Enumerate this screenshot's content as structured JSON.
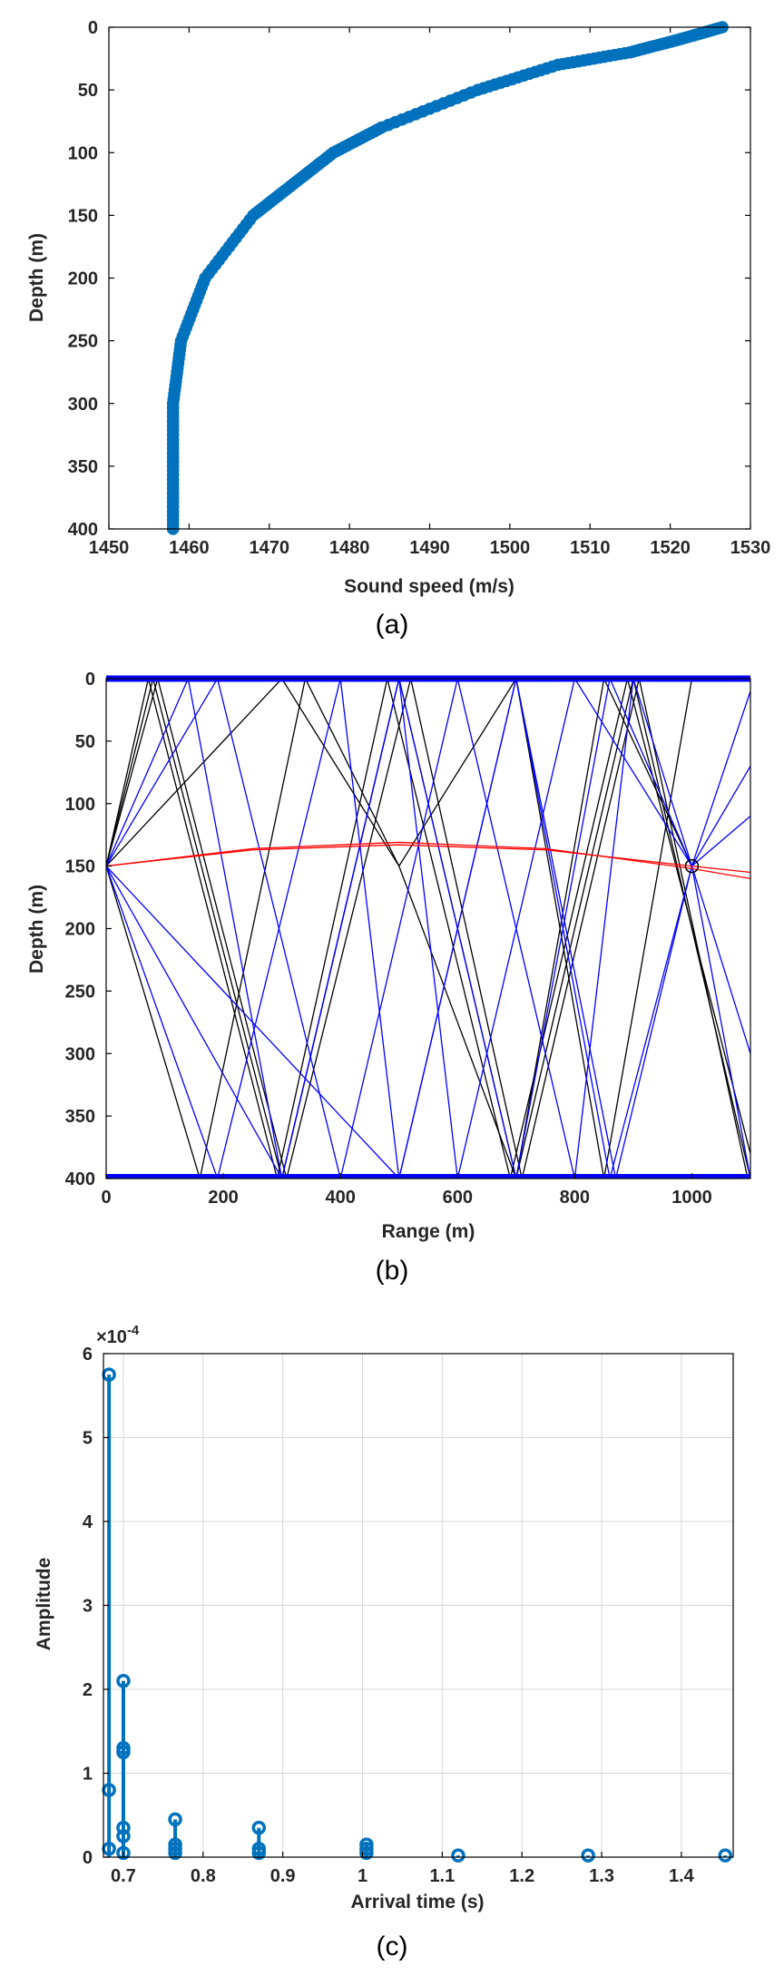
{
  "chart_data": [
    {
      "type": "line",
      "caption": "(a)",
      "xlabel": "Sound speed (m/s)",
      "ylabel": "Depth (m)",
      "xlim": [
        1450,
        1530
      ],
      "ylim": [
        0,
        400
      ],
      "y_reversed": true,
      "xticks": [
        "1450",
        "1460",
        "1470",
        "1480",
        "1490",
        "1500",
        "1510",
        "1520",
        "1530"
      ],
      "yticks": [
        "0",
        "50",
        "100",
        "150",
        "200",
        "250",
        "300",
        "350",
        "400"
      ],
      "marker": "circle",
      "color": "#0072bd",
      "series": [
        {
          "points": [
            [
              1526.5,
              0
            ],
            [
              1521,
              10
            ],
            [
              1515,
              20
            ],
            [
              1506,
              30
            ],
            [
              1496,
              50
            ],
            [
              1484,
              80
            ],
            [
              1478,
              100
            ],
            [
              1473,
              125
            ],
            [
              1468,
              150
            ],
            [
              1462,
              200
            ],
            [
              1459,
              250
            ],
            [
              1458,
              300
            ],
            [
              1458,
              350
            ],
            [
              1458,
              400
            ]
          ]
        }
      ]
    },
    {
      "type": "line",
      "caption": "(b)",
      "xlabel": "Range (m)",
      "ylabel": "Depth (m)",
      "xlim": [
        0,
        1100
      ],
      "ylim": [
        0,
        400
      ],
      "y_reversed": true,
      "xticks": [
        "0",
        "200",
        "400",
        "600",
        "800",
        "1000"
      ],
      "yticks": [
        "0",
        "50",
        "100",
        "150",
        "200",
        "250",
        "300",
        "350",
        "400"
      ],
      "source_depth": 150,
      "receiver": [
        1000,
        150
      ],
      "colors": {
        "black": "#000000",
        "blue": "#0000ff",
        "red": "#ff0000"
      },
      "series": [
        {
          "color": "black",
          "points": [
            [
              0,
              150
            ],
            [
              80,
              0
            ],
            [
              300,
              400
            ],
            [
              500,
              0
            ],
            [
              700,
              400
            ],
            [
              900,
              0
            ],
            [
              1100,
              400
            ]
          ]
        },
        {
          "color": "black",
          "points": [
            [
              0,
              150
            ],
            [
              72,
              0
            ],
            [
              292,
              400
            ],
            [
              480,
              0
            ],
            [
              690,
              400
            ],
            [
              890,
              0
            ],
            [
              1100,
              380
            ]
          ]
        },
        {
          "color": "black",
          "points": [
            [
              0,
              150
            ],
            [
              88,
              0
            ],
            [
              308,
              400
            ],
            [
              520,
              0
            ],
            [
              710,
              400
            ],
            [
              910,
              0
            ],
            [
              1100,
              410
            ]
          ]
        },
        {
          "color": "black",
          "points": [
            [
              0,
              150
            ],
            [
              300,
              0
            ],
            [
              500,
              150
            ],
            [
              700,
              0
            ],
            [
              850,
              400
            ],
            [
              1000,
              0
            ]
          ]
        },
        {
          "color": "black",
          "points": [
            [
              0,
              150
            ],
            [
              160,
              400
            ],
            [
              340,
              0
            ],
            [
              500,
              150
            ],
            [
              700,
              400
            ],
            [
              850,
              0
            ],
            [
              1000,
              150
            ]
          ]
        },
        {
          "color": "blue",
          "points": [
            [
              0,
              150
            ],
            [
              140,
              0
            ],
            [
              300,
              400
            ],
            [
              500,
              0
            ],
            [
              700,
              400
            ],
            [
              860,
              0
            ],
            [
              1000,
              150
            ],
            [
              1100,
              400
            ]
          ]
        },
        {
          "color": "blue",
          "points": [
            [
              0,
              150
            ],
            [
              190,
              0
            ],
            [
              400,
              400
            ],
            [
              600,
              0
            ],
            [
              800,
              400
            ],
            [
              900,
              0
            ],
            [
              1000,
              150
            ],
            [
              1100,
              300
            ]
          ]
        },
        {
          "color": "blue",
          "points": [
            [
              0,
              150
            ],
            [
              190,
              400
            ],
            [
              400,
              0
            ],
            [
              500,
              400
            ],
            [
              700,
              0
            ],
            [
              870,
              400
            ],
            [
              1000,
              150
            ],
            [
              1100,
              70
            ]
          ]
        },
        {
          "color": "blue",
          "points": [
            [
              0,
              150
            ],
            [
              300,
              400
            ],
            [
              500,
              0
            ],
            [
              600,
              400
            ],
            [
              800,
              0
            ],
            [
              1000,
              150
            ],
            [
              1100,
              110
            ]
          ]
        },
        {
          "color": "blue",
          "points": [
            [
              0,
              150
            ],
            [
              500,
              400
            ],
            [
              700,
              0
            ],
            [
              860,
              400
            ],
            [
              1000,
              150
            ],
            [
              1100,
              10
            ]
          ]
        },
        {
          "color": "red",
          "points": [
            [
              0,
              150
            ],
            [
              250,
              137
            ],
            [
              500,
              133
            ],
            [
              750,
              137
            ],
            [
              1000,
              150
            ],
            [
              1100,
              155
            ]
          ]
        },
        {
          "color": "red",
          "points": [
            [
              0,
              150
            ],
            [
              250,
              136
            ],
            [
              500,
              131
            ],
            [
              750,
              136
            ],
            [
              1000,
              152
            ],
            [
              1100,
              160
            ]
          ]
        }
      ]
    },
    {
      "type": "stem",
      "caption": "(c)",
      "xlabel": "Arrival time (s)",
      "ylabel": "Amplitude",
      "y_exponent": "×10",
      "y_exponent_power": "-4",
      "xlim": [
        0.675,
        1.465
      ],
      "ylim": [
        0,
        6
      ],
      "grid": true,
      "color": "#0072bd",
      "xticks": [
        "0.7",
        "0.8",
        "0.9",
        "1",
        "1.1",
        "1.2",
        "1.3",
        "1.4"
      ],
      "yticks": [
        "0",
        "1",
        "2",
        "3",
        "4",
        "5",
        "6"
      ],
      "stems": [
        {
          "x": 0.682,
          "y": [
            0.1,
            0.8,
            5.75
          ]
        },
        {
          "x": 0.7,
          "y": [
            0.05,
            0.25,
            0.35,
            1.25,
            1.3,
            2.1
          ]
        },
        {
          "x": 0.765,
          "y": [
            0.05,
            0.1,
            0.15,
            0.45
          ]
        },
        {
          "x": 0.87,
          "y": [
            0.05,
            0.1,
            0.35
          ]
        },
        {
          "x": 1.005,
          "y": [
            0.05,
            0.1,
            0.15
          ]
        },
        {
          "x": 1.12,
          "y": [
            0.02
          ]
        },
        {
          "x": 1.283,
          "y": [
            0.02
          ]
        },
        {
          "x": 1.455,
          "y": [
            0.02
          ]
        }
      ]
    }
  ]
}
